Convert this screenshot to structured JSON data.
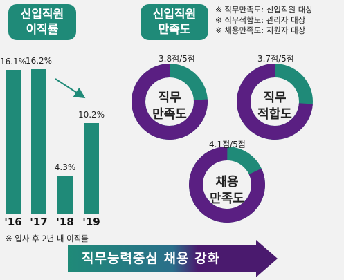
{
  "left_title": [
    "신입직원",
    "이직률"
  ],
  "right_title": [
    "신입직원",
    "만족도"
  ],
  "notes": [
    "※ 직무만족도: 신입직원 대상",
    "※ 직무적합도: 관리자 대상",
    "※ 채용만족도: 지원자 대상"
  ],
  "footnote": "※ 입사 후 2년 내 이직률",
  "banner": "직무능력중심 채용 강화",
  "colors": {
    "accent": "#1f8a78",
    "donut": "#5a1f82",
    "banner_dark": "#4a1a6e"
  },
  "chart_data": [
    {
      "type": "bar",
      "categories": [
        "'16",
        "'17",
        "'18",
        "'19"
      ],
      "values": [
        16.1,
        16.2,
        4.3,
        10.2
      ],
      "value_labels": [
        "16.1%",
        "16.2%",
        "4.3%",
        "10.2%"
      ],
      "title": "",
      "xlabel": "",
      "ylabel": "",
      "ylim": [
        0,
        18
      ],
      "grid": false,
      "annotation": "downward trend arrow from '17 to '19"
    },
    {
      "type": "pie",
      "donuts": [
        {
          "label": [
            "직무",
            "만족도"
          ],
          "score": 3.8,
          "max": 5,
          "score_label": "3.8점/5점"
        },
        {
          "label": [
            "직무",
            "적합도"
          ],
          "score": 3.7,
          "max": 5,
          "score_label": "3.7점/5점"
        },
        {
          "label": [
            "채용",
            "만족도"
          ],
          "score": 4.1,
          "max": 5,
          "score_label": "4.1점/5점"
        }
      ]
    }
  ]
}
